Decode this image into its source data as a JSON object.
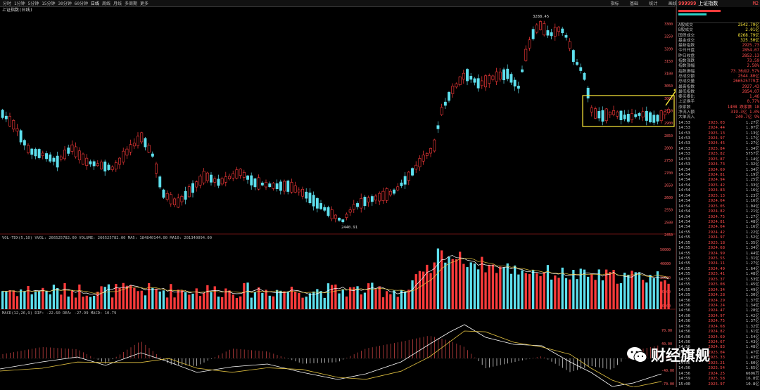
{
  "toolbar": {
    "periods": [
      "分时",
      "1分钟",
      "5分钟",
      "15分钟",
      "30分钟",
      "60分钟",
      "日线",
      "周线",
      "月线",
      "多周期",
      "更多"
    ],
    "right_menu": [
      "指标",
      "基础",
      "统计",
      "画线",
      "F10",
      "标记",
      "-",
      "□",
      "×"
    ]
  },
  "main_chart": {
    "label": "上证指数(日线)",
    "high_label": "3288.45",
    "low_label": "2440.91",
    "y_ticks": [
      "3300",
      "3250",
      "3200",
      "3150",
      "3100",
      "3050",
      "3000",
      "2950",
      "2900",
      "2850",
      "2800",
      "2750",
      "2700",
      "2650",
      "2600",
      "2550",
      "2500",
      "2450"
    ]
  },
  "volume_panel": {
    "header": "VOL-TDX(5,10)  VVOL: 266525782.00  VOLUME: 266525782.00  MA5: 184840144.00  MA10: 201340094.00",
    "y_ticks": [
      "50000",
      "40000",
      "30000",
      "20000",
      "10000"
    ]
  },
  "macd_panel": {
    "header": "MACD(12,26,9)  DIF: -22.60  DEA: -27.99  MACD: 10.79",
    "y_ticks": [
      "70.00",
      "40.00",
      "0.00",
      "-40.00",
      "-70.00"
    ]
  },
  "colors": {
    "up": "#ff3b3b",
    "down": "#5ee0ee",
    "box": "#ffeb3b",
    "ma": "#cccccc"
  },
  "side_panel": {
    "code": "999999",
    "name": "上证指数",
    "tag": "M2",
    "stats": [
      {
        "label": "A股成交",
        "value": "2542.79亿"
      },
      {
        "label": "B股成交",
        "value": "2.01亿"
      },
      {
        "label": "国债成交",
        "value": "8268.79亿"
      },
      {
        "label": "基金成交",
        "value": "325.50亿"
      },
      {
        "label": "最新指数",
        "value": "2925.73"
      },
      {
        "label": "今日开盘",
        "value": "2854.07"
      },
      {
        "label": "昨日收盘",
        "value": "2852.13"
      },
      {
        "label": "指数涨跌",
        "value": "73.59"
      },
      {
        "label": "指数涨幅",
        "value": "2.58%"
      },
      {
        "label": "指数振幅",
        "value": "73.36点2.57%"
      },
      {
        "label": "总成交额",
        "value": "2544.80亿"
      },
      {
        "label": "总成交量",
        "value": "266525779手"
      },
      {
        "label": "最高指数",
        "value": "2927.43"
      },
      {
        "label": "最低指数",
        "value": "2854.07"
      },
      {
        "label": "委买委比",
        "value": "1.46"
      },
      {
        "label": "上证换手",
        "value": "0.77%"
      },
      {
        "label": "涨家数",
        "value": "1408  跌家数  18"
      },
      {
        "label": "净流入额",
        "value": "319.3亿  1.0%"
      },
      {
        "label": "大单流入",
        "value": "240.7亿  9%"
      }
    ],
    "ticks": [
      [
        "14:53",
        "2925.03",
        "1.27亿"
      ],
      [
        "14:53",
        "2924.44",
        "1.07亿"
      ],
      [
        "14:53",
        "2925.13",
        "1.13亿"
      ],
      [
        "14:53",
        "2924.97",
        "1.17亿"
      ],
      [
        "14:53",
        "2924.45",
        "1.27亿"
      ],
      [
        "14:53",
        "2925.84",
        "1.34亿"
      ],
      [
        "14:53",
        "2925.82",
        "5757亿"
      ],
      [
        "14:53",
        "2925.87",
        "1.14亿"
      ],
      [
        "14:53",
        "2924.73",
        "1.32亿"
      ],
      [
        "14:54",
        "2924.69",
        "1.34亿"
      ],
      [
        "14:54",
        "2924.81",
        "1.19亿"
      ],
      [
        "14:54",
        "2924.94",
        "1.25亿"
      ],
      [
        "14:54",
        "2925.42",
        "1.33亿"
      ],
      [
        "14:54",
        "2924.83",
        "1.16亿"
      ],
      [
        "14:54",
        "2925.13",
        "1.23亿"
      ],
      [
        "14:54",
        "2924.64",
        "1.16亿"
      ],
      [
        "14:54",
        "2925.05",
        "1.04亿"
      ],
      [
        "14:54",
        "2924.82",
        "1.21亿"
      ],
      [
        "14:54",
        "2924.75",
        "1.27亿"
      ],
      [
        "14:54",
        "2924.81",
        "1.48亿"
      ],
      [
        "14:54",
        "2924.64",
        "1.16亿"
      ],
      [
        "14:55",
        "2924.42",
        "1.22亿"
      ],
      [
        "14:55",
        "2924.97",
        "1.52亿"
      ],
      [
        "14:55",
        "2925.18",
        "1.35亿"
      ],
      [
        "14:55",
        "2924.68",
        "1.34亿"
      ],
      [
        "14:55",
        "2924.99",
        "1.44亿"
      ],
      [
        "14:55",
        "2925.55",
        "1.31亿"
      ],
      [
        "14:55",
        "2924.11",
        "1.27亿"
      ],
      [
        "14:55",
        "2924.49",
        "1.64亿"
      ],
      [
        "14:55",
        "2925.41",
        "1.48亿"
      ],
      [
        "14:55",
        "2925.37",
        "1.53亿"
      ],
      [
        "14:55",
        "2925.08",
        "1.45亿"
      ],
      [
        "14:55",
        "2924.34",
        "1.49亿"
      ],
      [
        "14:55",
        "2924.28",
        "1.30亿"
      ],
      [
        "14:56",
        "2924.29",
        "1.37亿"
      ],
      [
        "14:56",
        "2924.24",
        "1.34亿"
      ],
      [
        "14:56",
        "2924.47",
        "1.28亿"
      ],
      [
        "14:56",
        "2924.97",
        "1.42亿"
      ],
      [
        "14:56",
        "2924.75",
        "1.37亿"
      ],
      [
        "14:56",
        "2924.68",
        "1.32亿"
      ],
      [
        "14:56",
        "2924.82",
        "1.61亿"
      ],
      [
        "14:56",
        "2924.69",
        "1.54亿"
      ],
      [
        "14:56",
        "2924.67",
        "1.43亿"
      ],
      [
        "14:56",
        "2924.83",
        "1.48亿"
      ],
      [
        "14:56",
        "2925.04",
        "1.47亿"
      ],
      [
        "14:56",
        "2925.33",
        "1.43亿"
      ],
      [
        "14:56",
        "2925.21",
        "1.60亿"
      ],
      [
        "14:56",
        "2925.54",
        "1.65亿"
      ],
      [
        "14:56",
        "2924.25",
        "6696万"
      ],
      [
        "14:59",
        "2925.58",
        "16.8亿"
      ],
      [
        "15:00",
        "2925.97",
        "10.8亿"
      ]
    ]
  },
  "watermark": {
    "text": "财经旗舰",
    "icon": "wechat-icon"
  }
}
